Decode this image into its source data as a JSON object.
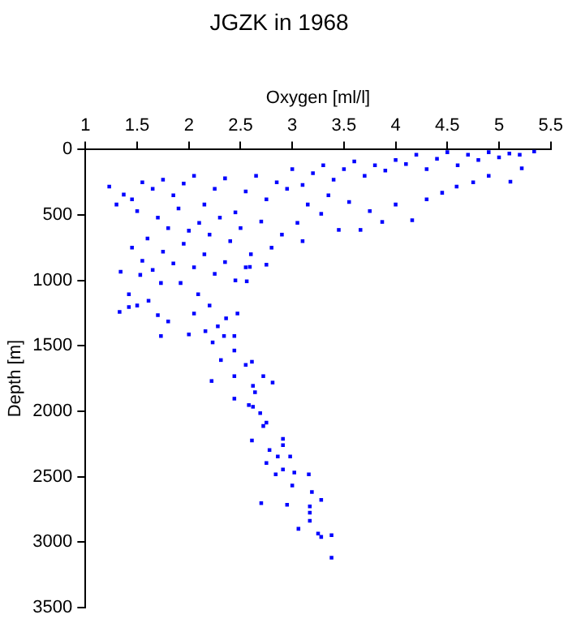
{
  "chart_data": {
    "type": "scatter",
    "title": "JGZK in 1968",
    "xlabel": "Oxygen [ml/l]",
    "ylabel": "Depth [m]",
    "xlim": [
      1,
      5.5
    ],
    "xticks": [
      1,
      1.5,
      2,
      2.5,
      3,
      3.5,
      4,
      4.5,
      5,
      5.5
    ],
    "ylim": [
      3500,
      0
    ],
    "yticks": [
      0,
      500,
      1000,
      1500,
      2000,
      2500,
      3000,
      3500
    ],
    "grid": false,
    "legend": false,
    "marker": "square",
    "series": [
      {
        "color": "#0000ff",
        "x": [
          5.34,
          5.22,
          5.11,
          5.2,
          5.1,
          5.0,
          4.9,
          4.8,
          4.7,
          4.6,
          4.5,
          4.4,
          4.3,
          4.2,
          4.1,
          4.0,
          3.9,
          3.8,
          3.7,
          3.6,
          3.5,
          3.4,
          3.3,
          3.2,
          3.1,
          3.0,
          4.9,
          4.75,
          4.59,
          4.45,
          4.3,
          4.16,
          4.0,
          3.87,
          3.75,
          3.66,
          3.55,
          3.45,
          3.35,
          3.28,
          3.15,
          3.05,
          2.95,
          2.85,
          2.75,
          2.65,
          2.55,
          2.45,
          2.35,
          2.25,
          2.15,
          2.05,
          1.95,
          1.85,
          1.75,
          1.65,
          1.55,
          1.45,
          1.37,
          1.23,
          1.3,
          1.5,
          1.7,
          1.9,
          2.1,
          2.3,
          2.5,
          2.7,
          2.9,
          3.1,
          2.8,
          2.6,
          2.4,
          2.2,
          2.0,
          1.8,
          1.6,
          1.45,
          1.55,
          1.75,
          1.95,
          2.15,
          2.35,
          2.55,
          2.75,
          2.45,
          2.25,
          2.05,
          1.85,
          1.65,
          1.34,
          1.53,
          1.73,
          1.92,
          2.09,
          1.42,
          2.56,
          2.59,
          2.2,
          1.5,
          1.42,
          1.33,
          1.61,
          1.7,
          1.8,
          2.05,
          2.16,
          2.28,
          2.36,
          2.47,
          1.73,
          2.0,
          2.23,
          2.34,
          2.44,
          2.44,
          2.31,
          2.55,
          2.61,
          2.22,
          2.44,
          2.72,
          2.81,
          2.62,
          2.64,
          2.44,
          2.58,
          2.69,
          2.75,
          2.62,
          2.72,
          2.61,
          2.91,
          2.91,
          2.78,
          2.86,
          2.98,
          2.75,
          2.91,
          2.84,
          3.02,
          3.16,
          3.0,
          3.19,
          3.28,
          2.7,
          2.95,
          3.17,
          3.17,
          3.17,
          3.06,
          3.25,
          3.28,
          3.38,
          3.38
        ],
        "values": [
          15,
          143,
          246,
          40,
          30,
          60,
          20,
          80,
          40,
          120,
          20,
          70,
          150,
          40,
          110,
          80,
          160,
          120,
          200,
          90,
          150,
          230,
          120,
          180,
          270,
          150,
          200,
          250,
          283,
          330,
          380,
          540,
          420,
          553,
          470,
          614,
          400,
          614,
          350,
          491,
          420,
          560,
          300,
          250,
          380,
          200,
          320,
          480,
          220,
          300,
          420,
          200,
          260,
          350,
          230,
          300,
          250,
          380,
          344,
          283,
          420,
          470,
          520,
          450,
          560,
          520,
          600,
          550,
          650,
          700,
          750,
          800,
          700,
          650,
          620,
          600,
          680,
          750,
          850,
          780,
          720,
          800,
          860,
          900,
          880,
          1000,
          950,
          900,
          870,
          920,
          934,
          958,
          1020,
          1020,
          1106,
          1106,
          1007,
          897,
          1192,
          1192,
          1204,
          1241,
          1155,
          1265,
          1314,
          1253,
          1388,
          1351,
          1290,
          1253,
          1425,
          1413,
          1474,
          1425,
          1425,
          1536,
          1609,
          1646,
          1622,
          1769,
          1732,
          1732,
          1781,
          1806,
          1855,
          1904,
          1953,
          2015,
          2088,
          1966,
          2113,
          2224,
          2211,
          2260,
          2297,
          2346,
          2346,
          2396,
          2445,
          2482,
          2469,
          2482,
          2568,
          2617,
          2678,
          2703,
          2715,
          2727,
          2776,
          2838,
          2899,
          2936,
          2961,
          2948,
          3120
        ]
      }
    ]
  }
}
